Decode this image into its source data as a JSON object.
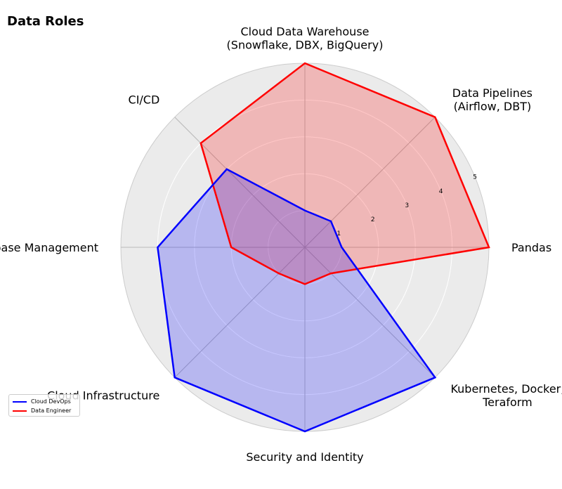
{
  "chart_data": {
    "type": "radar",
    "title": "Data Roles",
    "axes": [
      "Cloud Data Warehouse\n(Snowflake, DBX, BigQuery)",
      "Data Pipelines\n(Airflow, DBT)",
      "Pandas",
      "Kubernetes, Docker,\nTeraform",
      "Security and Identity",
      "Cloud Infrastructure",
      "Database Management",
      "CI/CD"
    ],
    "radial_ticks": [
      "1",
      "2",
      "3",
      "4",
      "5"
    ],
    "rmax": 5,
    "series": [
      {
        "name": "Cloud DevOps",
        "color": "#0000ff",
        "fill": "#0000ff",
        "values": [
          1,
          1,
          1,
          5,
          5,
          5,
          4,
          3
        ]
      },
      {
        "name": "Data Engineer",
        "color": "#ff0000",
        "fill": "#ff0000",
        "values": [
          5,
          5,
          5,
          1,
          1,
          1,
          2,
          4
        ]
      }
    ],
    "legend_position": "lower-left",
    "grid": true
  }
}
